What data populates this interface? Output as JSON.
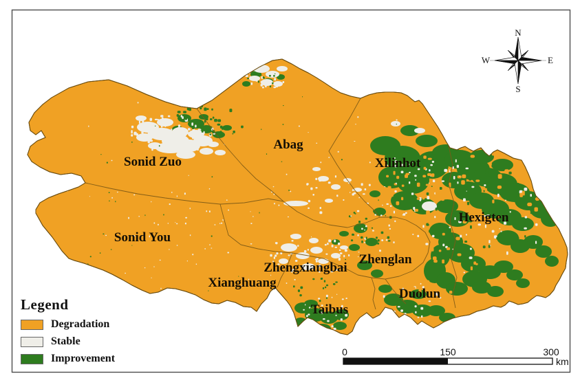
{
  "map": {
    "labels": {
      "sonid_zuo": "Sonid Zuo",
      "sonid_you": "Sonid You",
      "abag": "Abag",
      "xilinhot": "Xilinhot",
      "zhengxiangbai": "Zhengxiangbai",
      "xianghuang": "Xianghuang",
      "zhenglan": "Zhenglan",
      "duolun": "Duolun",
      "taibus": "Taibus",
      "hexigten": "Hexigten"
    }
  },
  "legend": {
    "title": "Legend",
    "items": [
      {
        "label": "Degradation",
        "key": "degradation"
      },
      {
        "label": "Stable",
        "key": "stable"
      },
      {
        "label": "Improvement",
        "key": "improvement"
      }
    ]
  },
  "compass": {
    "north": "N",
    "east": "E",
    "south": "S",
    "west": "W"
  },
  "scale_bar": {
    "tick_0": "0",
    "tick_mid": "150",
    "tick_max": "300",
    "unit": "km"
  },
  "colors": {
    "degradation": "#F0A124",
    "stable": "#EFEEE8",
    "improvement": "#2E7C1F",
    "boundary": "#7D5A16",
    "outline": "#6B4D10",
    "frame": "#4D4D4D",
    "text": "#140F05"
  }
}
